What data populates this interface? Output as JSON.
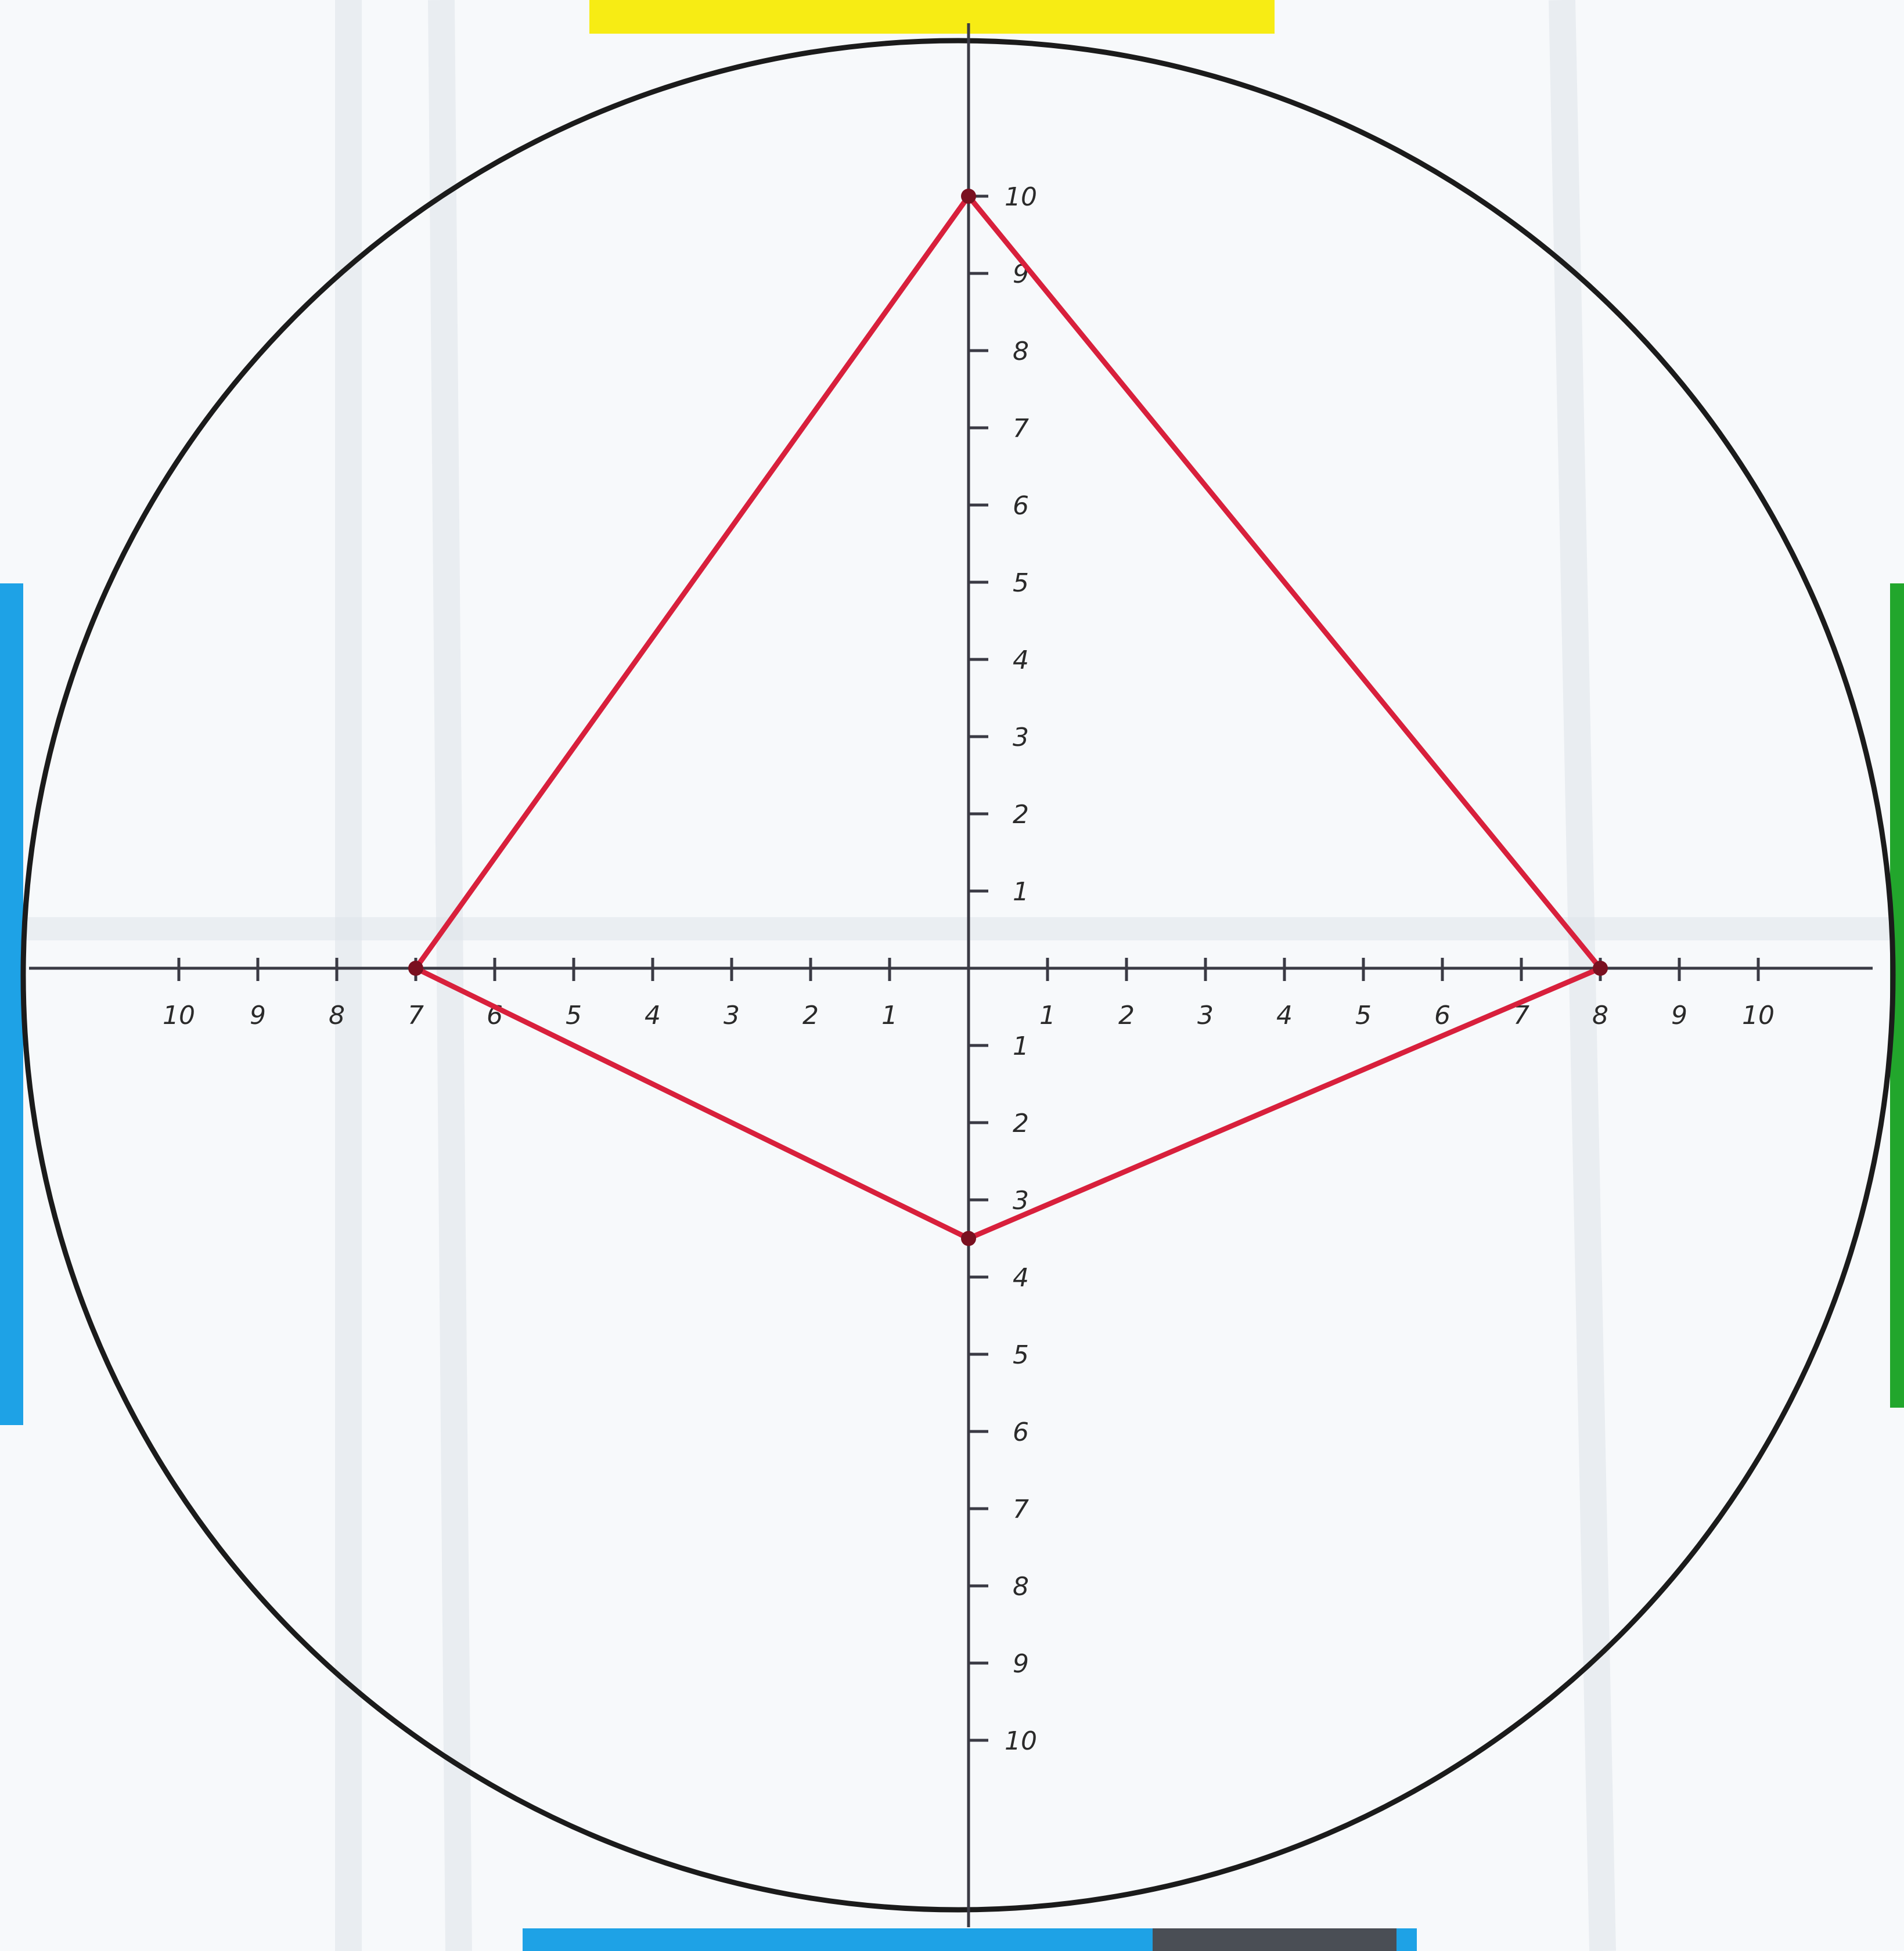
{
  "colors": {
    "paper": "#f7f9fb",
    "fold": "#dfe4ea",
    "circle": "#1b1b1b",
    "axis": "#3a3a44",
    "polygon": "#d8203c",
    "tab_top": "#f7ec14",
    "tab_left": "#1ea2e6",
    "tab_right": "#22a62c",
    "tab_bottom": "#1ea2e6",
    "tab_bottom_dark": "#4a4e55"
  },
  "tabs": [
    "top",
    "left",
    "right",
    "bottom"
  ],
  "axes": {
    "x_labels": [
      "10",
      "9",
      "8",
      "7",
      "6",
      "5",
      "4",
      "3",
      "2",
      "1",
      "1",
      "2",
      "3",
      "4",
      "5",
      "6",
      "7",
      "8",
      "9",
      "10"
    ],
    "x_values": [
      -10,
      -9,
      -8,
      -7,
      -6,
      -5,
      -4,
      -3,
      -2,
      -1,
      1,
      2,
      3,
      4,
      5,
      6,
      7,
      8,
      9,
      10
    ],
    "y_labels": [
      "10",
      "9",
      "8",
      "7",
      "6",
      "5",
      "4",
      "3",
      "2",
      "1",
      "1",
      "2",
      "3",
      "4",
      "5",
      "6",
      "7",
      "8",
      "9",
      "10"
    ],
    "y_values": [
      10,
      9,
      8,
      7,
      6,
      5,
      4,
      3,
      2,
      1,
      -1,
      -2,
      -3,
      -4,
      -5,
      -6,
      -7,
      -8,
      -9,
      -10
    ],
    "range": [
      -10,
      10
    ]
  },
  "polygon": {
    "vertices": [
      {
        "x": 0,
        "y": 10
      },
      {
        "x": 8,
        "y": 0
      },
      {
        "x": 0,
        "y": -3.5
      },
      {
        "x": -7,
        "y": 0
      }
    ]
  }
}
